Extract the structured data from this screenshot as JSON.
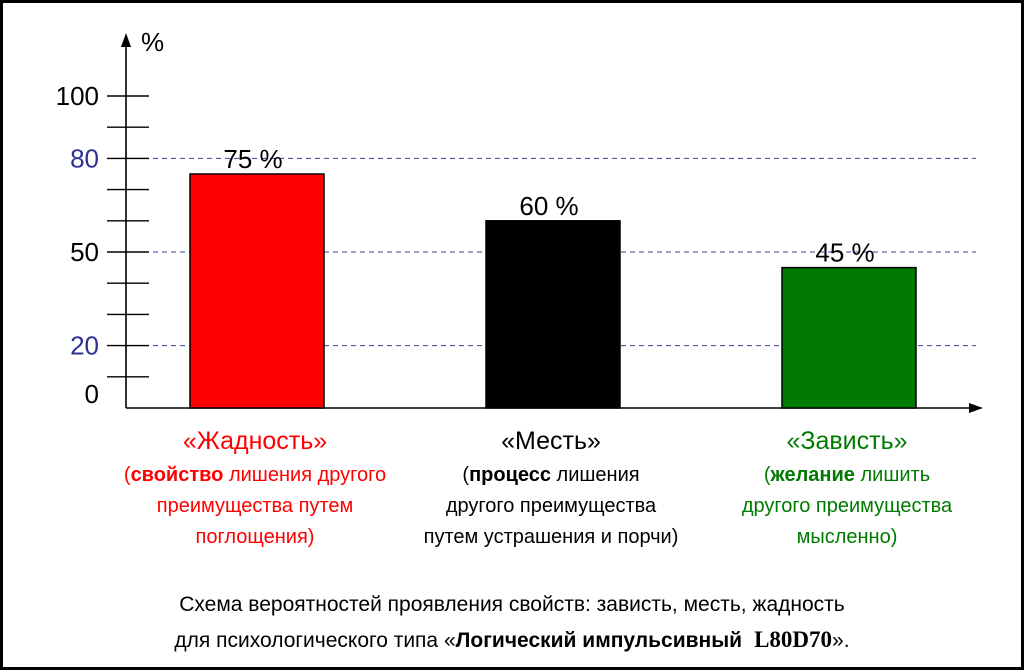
{
  "chart_data": {
    "type": "bar",
    "ylabel": "%",
    "ylim": [
      0,
      100
    ],
    "ticks": [
      {
        "label": "100",
        "value": 100,
        "color": "#000000",
        "dashed": false
      },
      {
        "label": "80",
        "value": 80,
        "color": "#2e3192",
        "dashed": true
      },
      {
        "label": "50",
        "value": 50,
        "color": "#000000",
        "dashed": true
      },
      {
        "label": "20",
        "value": 20,
        "color": "#2e3192",
        "dashed": true
      },
      {
        "label": "0",
        "value": 0,
        "color": "#000000",
        "dashed": false
      }
    ],
    "bars": [
      {
        "value": 75,
        "label": "75 %",
        "color": "#ff0000"
      },
      {
        "value": 60,
        "label": "60 %",
        "color": "#000000"
      },
      {
        "value": 45,
        "label": "45 %",
        "color": "#007a00"
      }
    ]
  },
  "categories": [
    {
      "title": "«Жадность»",
      "color": "#ff0000",
      "lines": [
        {
          "parts": [
            {
              "text": "(",
              "bold": false
            },
            {
              "text": "свойство",
              "bold": true
            },
            {
              "text": " лишения другого",
              "bold": false
            }
          ]
        },
        {
          "parts": [
            {
              "text": "преимущества путем",
              "bold": false
            }
          ]
        },
        {
          "parts": [
            {
              "text": "поглощения)",
              "bold": false
            }
          ]
        }
      ]
    },
    {
      "title": "«Месть»",
      "color": "#000000",
      "lines": [
        {
          "parts": [
            {
              "text": "(",
              "bold": false
            },
            {
              "text": "процесс",
              "bold": true
            },
            {
              "text": " лишения",
              "bold": false
            }
          ]
        },
        {
          "parts": [
            {
              "text": "другого преимущества",
              "bold": false
            }
          ]
        },
        {
          "parts": [
            {
              "text": "путем устрашения и порчи)",
              "bold": false
            }
          ]
        }
      ]
    },
    {
      "title": "«Зависть»",
      "color": "#007a00",
      "lines": [
        {
          "parts": [
            {
              "text": "(",
              "bold": false
            },
            {
              "text": "желание",
              "bold": true
            },
            {
              "text": " лишить",
              "bold": false
            }
          ]
        },
        {
          "parts": [
            {
              "text": "другого преимущества",
              "bold": false
            }
          ]
        },
        {
          "parts": [
            {
              "text": "мысленно)",
              "bold": false
            }
          ]
        }
      ]
    }
  ],
  "caption": {
    "line1": "Схема вероятностей проявления свойств: зависть, месть, жадность",
    "line2_prefix": "для психологического типа «",
    "line2_bold": "Логический импульсивный",
    "line2_code": "L80D70",
    "line2_suffix": "»."
  }
}
